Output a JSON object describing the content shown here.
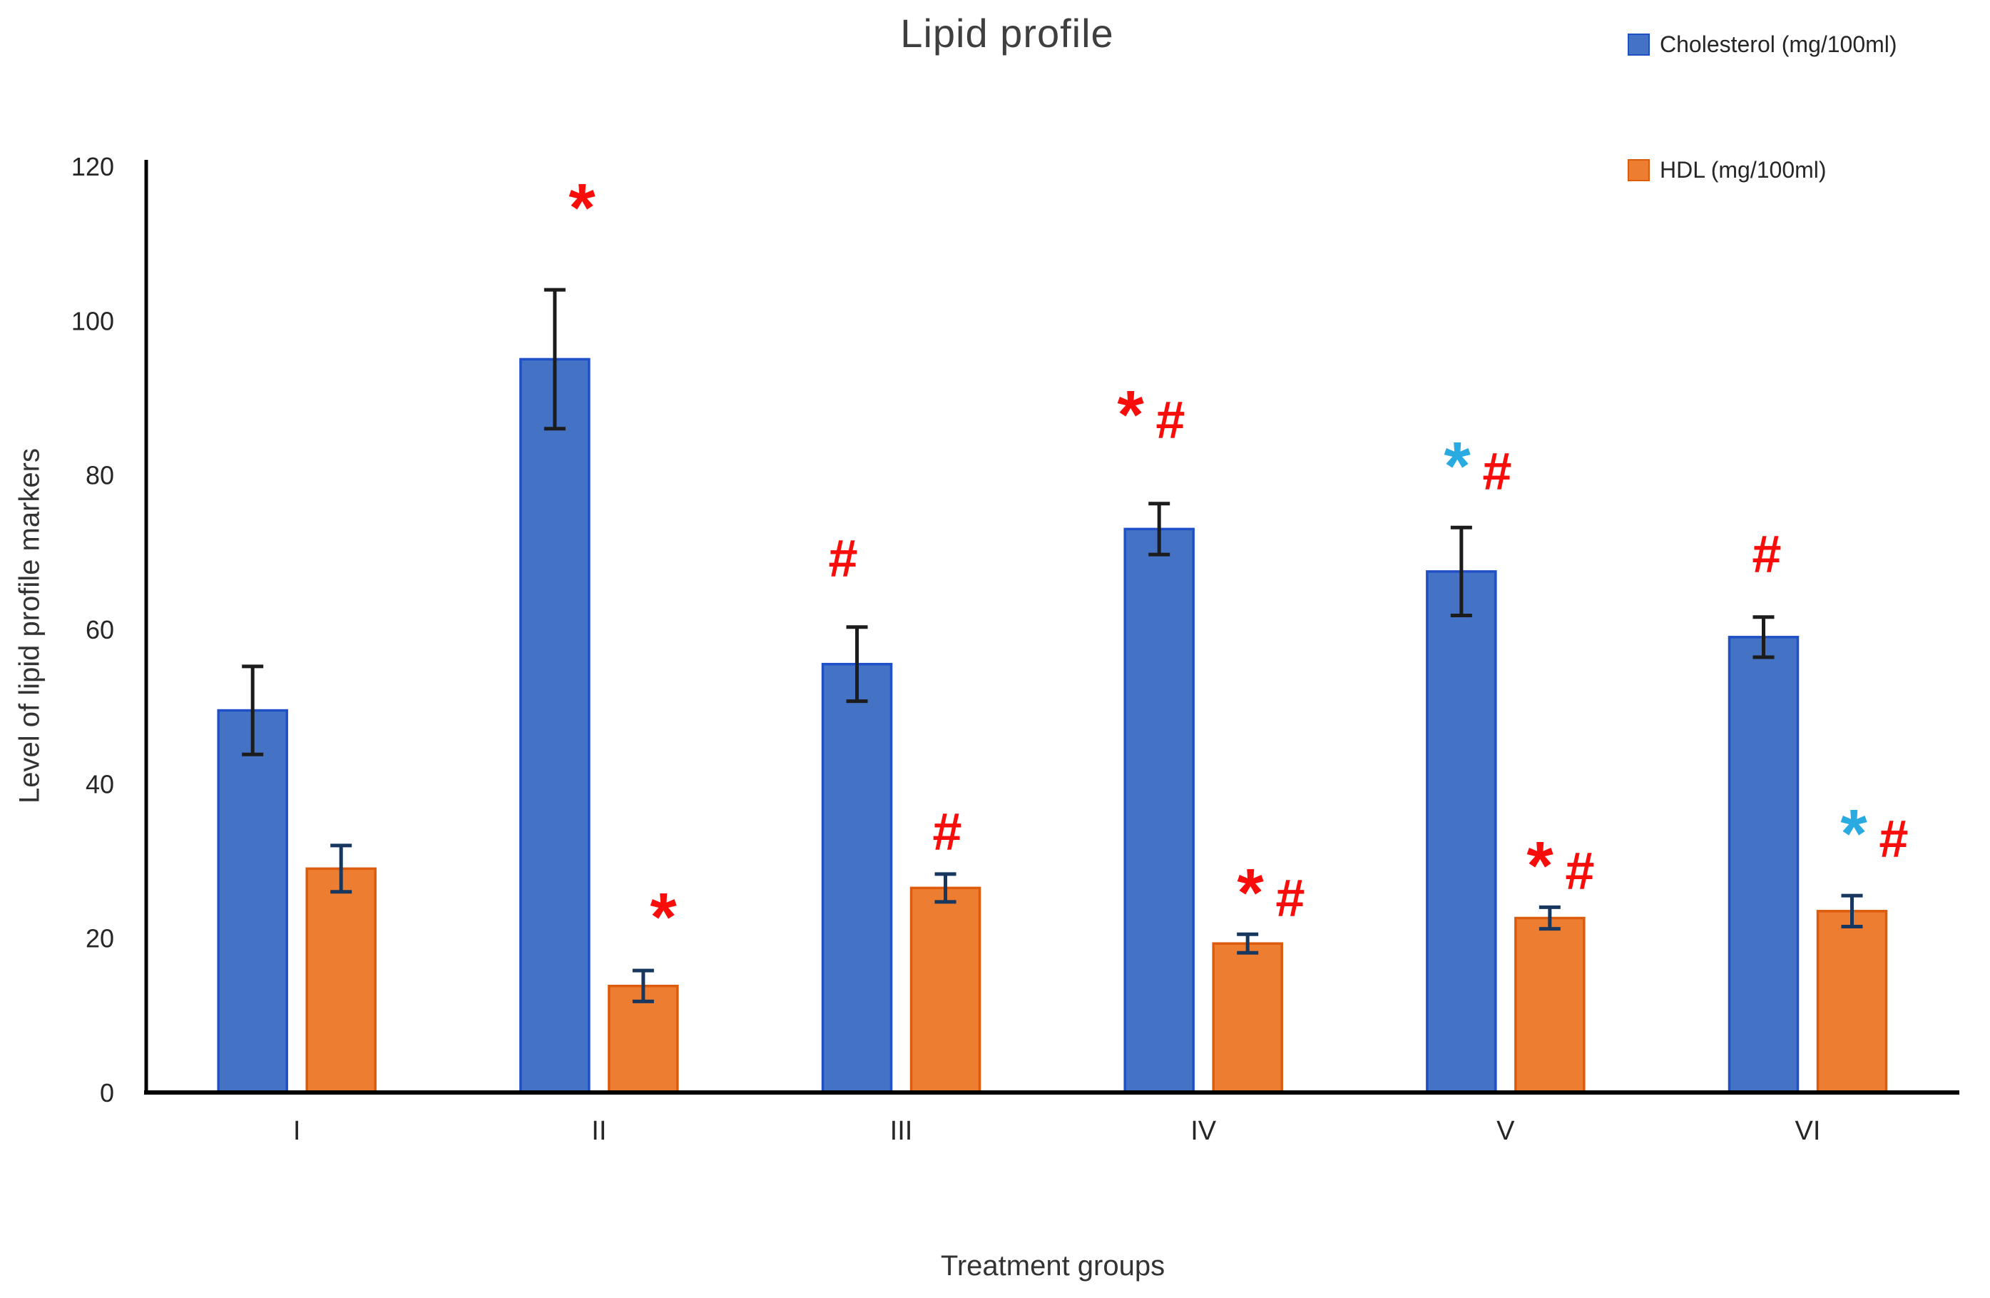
{
  "chart_data": {
    "type": "bar",
    "title": "Lipid profile",
    "xlabel": "Treatment groups",
    "ylabel": "Level of lipid profile markers",
    "categories": [
      "I",
      "II",
      "III",
      "IV",
      "V",
      "VI"
    ],
    "ylim": [
      0,
      120
    ],
    "yticks": [
      0,
      20,
      40,
      60,
      80,
      100,
      120
    ],
    "grid": false,
    "legend_position": "top-right",
    "series": [
      {
        "name": "Cholesterol (mg/100ml)",
        "color": "#4472C4",
        "border_color": "#2050C8",
        "values": [
          49.5,
          95,
          55.5,
          73,
          67.5,
          59
        ],
        "errors": [
          5.7,
          9,
          4.8,
          3.3,
          5.7,
          2.6
        ],
        "error_color": "#1c1c1c"
      },
      {
        "name": "HDL (mg/100ml)",
        "color": "#ED7D31",
        "border_color": "#DD5B0C",
        "values": [
          29,
          13.8,
          26.5,
          19.3,
          22.6,
          23.5
        ],
        "errors": [
          3,
          2,
          1.8,
          1.2,
          1.4,
          2
        ],
        "error_color": "#17375E"
      }
    ],
    "annotation_colors": {
      "red": "#F90D0B",
      "cyan": "#29ABE2"
    },
    "annotations": [
      {
        "x": 816,
        "y": 278,
        "parts": [
          {
            "t": "*",
            "c": "red"
          }
        ]
      },
      {
        "x": 930,
        "y": 1272,
        "parts": [
          {
            "t": "*",
            "c": "red"
          }
        ]
      },
      {
        "x": 1182,
        "y": 782,
        "parts": [
          {
            "t": "#",
            "c": "red"
          }
        ]
      },
      {
        "x": 1328,
        "y": 1165,
        "parts": [
          {
            "t": "#",
            "c": "red"
          }
        ]
      },
      {
        "x": 1612,
        "y": 568,
        "parts": [
          {
            "t": "*",
            "c": "red"
          },
          {
            "t": "#",
            "c": "red"
          }
        ]
      },
      {
        "x": 1780,
        "y": 1238,
        "parts": [
          {
            "t": "*",
            "c": "red"
          },
          {
            "t": "#",
            "c": "red"
          }
        ]
      },
      {
        "x": 2070,
        "y": 640,
        "parts": [
          {
            "t": "*",
            "c": "cyan"
          },
          {
            "t": "#",
            "c": "red"
          }
        ]
      },
      {
        "x": 2186,
        "y": 1200,
        "parts": [
          {
            "t": "*",
            "c": "red"
          },
          {
            "t": "#",
            "c": "red"
          }
        ]
      },
      {
        "x": 2477,
        "y": 776,
        "parts": [
          {
            "t": "#",
            "c": "red"
          }
        ]
      },
      {
        "x": 2626,
        "y": 1155,
        "parts": [
          {
            "t": "*",
            "c": "cyan"
          },
          {
            "t": "#",
            "c": "red"
          }
        ]
      }
    ]
  }
}
